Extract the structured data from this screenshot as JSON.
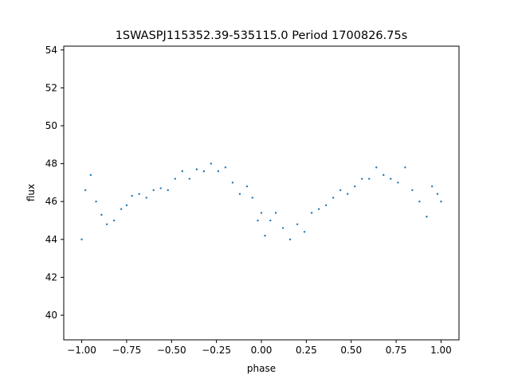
{
  "chart_data": {
    "type": "scatter",
    "title": "1SWASPJ115352.39-535115.0 Period 1700826.75s",
    "xlabel": "phase",
    "ylabel": "flux",
    "xlim": [
      -1.1,
      1.1
    ],
    "ylim": [
      38.7,
      54.2
    ],
    "xticks": [
      -1.0,
      -0.75,
      -0.5,
      -0.25,
      0.0,
      0.25,
      0.5,
      0.75,
      1.0
    ],
    "xtick_labels": [
      "−1.00",
      "−0.75",
      "−0.50",
      "−0.25",
      "0.00",
      "0.25",
      "0.50",
      "0.75",
      "1.00"
    ],
    "yticks": [
      40,
      42,
      44,
      46,
      48,
      50,
      52,
      54
    ],
    "ytick_labels": [
      "40",
      "42",
      "44",
      "46",
      "48",
      "50",
      "52",
      "54"
    ],
    "grid": false,
    "legend": "none",
    "marker_color": "#1f77b4",
    "x_range": [
      -1.0,
      1.0
    ],
    "series": [
      {
        "points": [
          [
            -1.0,
            44.0
          ],
          [
            -0.98,
            46.6
          ],
          [
            -0.95,
            47.4
          ],
          [
            -0.92,
            46.0
          ],
          [
            -0.89,
            45.3
          ],
          [
            -0.86,
            44.8
          ],
          [
            -0.82,
            45.0
          ],
          [
            -0.78,
            45.6
          ],
          [
            -0.75,
            45.8
          ],
          [
            -0.72,
            46.3
          ],
          [
            -0.68,
            46.4
          ],
          [
            -0.64,
            46.2
          ],
          [
            -0.6,
            46.6
          ],
          [
            -0.56,
            46.7
          ],
          [
            -0.52,
            46.6
          ],
          [
            -0.48,
            47.2
          ],
          [
            -0.44,
            47.6
          ],
          [
            -0.4,
            47.2
          ],
          [
            -0.36,
            47.7
          ],
          [
            -0.32,
            47.6
          ],
          [
            -0.28,
            48.0
          ],
          [
            -0.24,
            47.6
          ],
          [
            -0.2,
            47.8
          ],
          [
            -0.16,
            47.0
          ],
          [
            -0.12,
            46.4
          ],
          [
            -0.08,
            46.8
          ],
          [
            -0.05,
            46.2
          ],
          [
            -0.02,
            45.0
          ],
          [
            0.0,
            45.4
          ],
          [
            0.02,
            44.2
          ],
          [
            0.05,
            45.0
          ],
          [
            0.08,
            45.4
          ],
          [
            0.12,
            44.6
          ],
          [
            0.16,
            44.0
          ],
          [
            0.2,
            44.8
          ],
          [
            0.24,
            44.4
          ],
          [
            0.28,
            45.4
          ],
          [
            0.32,
            45.6
          ],
          [
            0.36,
            45.8
          ],
          [
            0.4,
            46.2
          ],
          [
            0.44,
            46.6
          ],
          [
            0.48,
            46.4
          ],
          [
            0.52,
            46.8
          ],
          [
            0.56,
            47.2
          ],
          [
            0.6,
            47.2
          ],
          [
            0.64,
            47.8
          ],
          [
            0.68,
            47.4
          ],
          [
            0.72,
            47.2
          ],
          [
            0.76,
            47.0
          ],
          [
            0.8,
            47.8
          ],
          [
            0.84,
            46.6
          ],
          [
            0.88,
            46.0
          ],
          [
            0.92,
            45.2
          ],
          [
            0.95,
            46.8
          ],
          [
            0.98,
            46.4
          ],
          [
            1.0,
            46.0
          ]
        ]
      }
    ]
  }
}
